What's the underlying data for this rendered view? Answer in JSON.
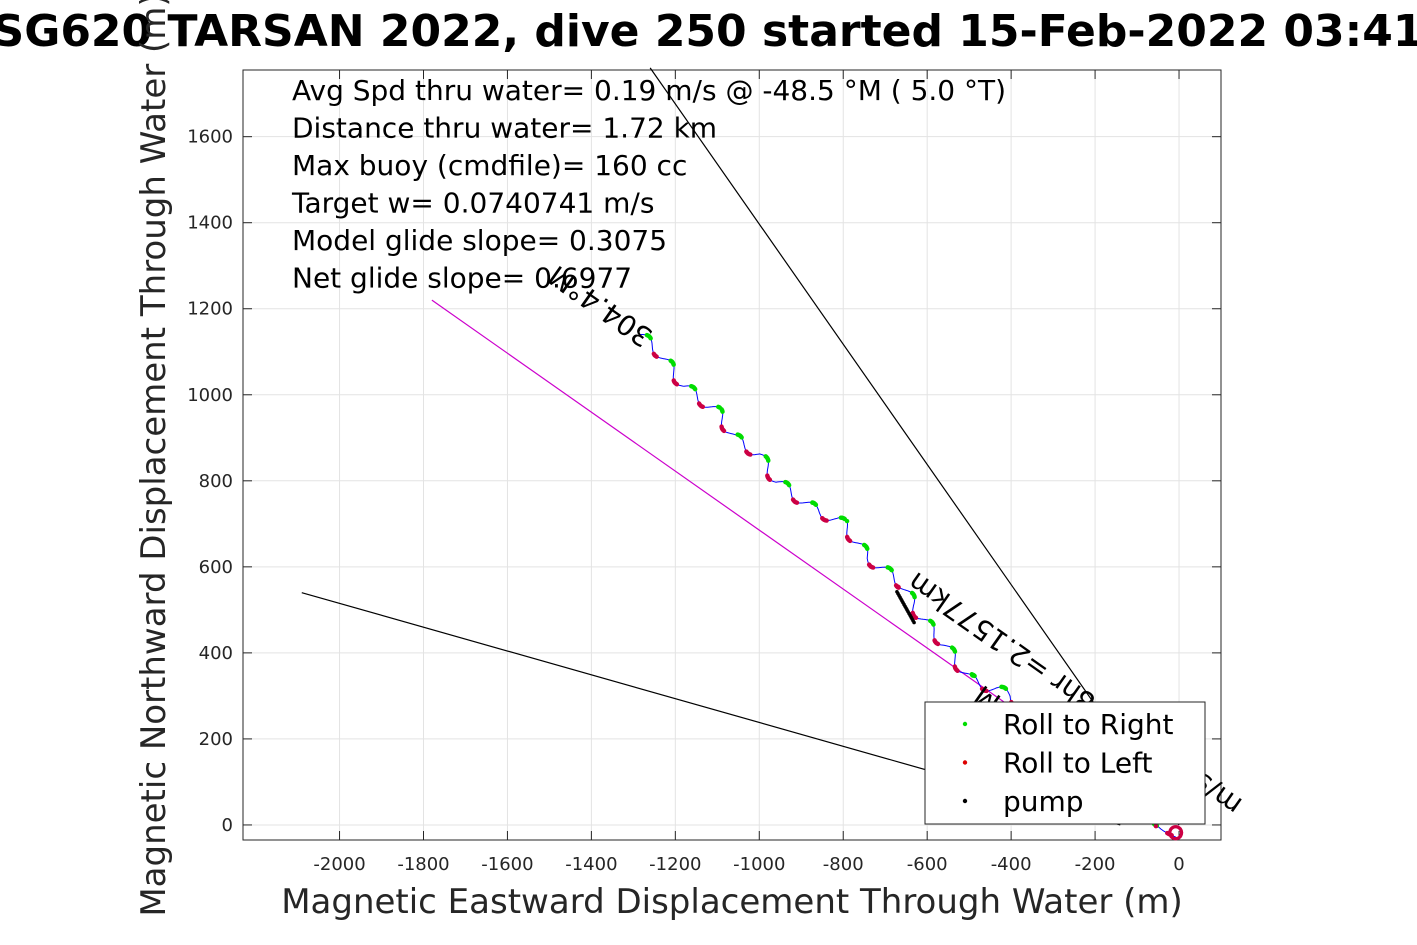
{
  "chart_data": {
    "type": "scatter",
    "title": "SG620 TARSAN 2022, dive 250 started 15-Feb-2022 03:41",
    "xlabel": "Magnetic Eastward Displacement Through Water (m)",
    "ylabel": "Magnetic Northward Displacement Through Water (m)",
    "xlim": [
      -2230,
      100
    ],
    "ylim": [
      -35,
      1755
    ],
    "xticks": [
      -2000,
      -1800,
      -1600,
      -1400,
      -1200,
      -1000,
      -800,
      -600,
      -400,
      -200,
      0
    ],
    "yticks": [
      0,
      200,
      400,
      600,
      800,
      1000,
      1200,
      1400,
      1600
    ],
    "grid": true,
    "annotations": [
      "Avg Spd thru water=  0.19 m/s @ -48.5 °M (  5.0 °T)",
      "Distance thru water=  1.72 km",
      "Max buoy (cmdfile)= 160 cc",
      "Target w= 0.0740741 m/s",
      "Model glide slope= 0.3075",
      "Net glide slope= 0.6977"
    ],
    "heading_label": "304.4°M",
    "speed_label": "m/s for2.4878hr =2.1577km",
    "heading_end_label": "M",
    "lines": [
      {
        "name": "track",
        "color": "#cc00cc",
        "x": [
          0,
          -1780
        ],
        "y": [
          0,
          1220
        ]
      },
      {
        "name": "upper bound",
        "color": "#000000",
        "x": [
          0,
          -1260
        ],
        "y": [
          0,
          1760
        ]
      },
      {
        "name": "lower bound",
        "color": "#000000",
        "x": [
          -140,
          -2090
        ],
        "y": [
          0,
          540
        ]
      }
    ],
    "path_control": [
      [
        -5,
        -30
      ],
      [
        -30,
        -15
      ],
      [
        -60,
        -5
      ],
      [
        -200,
        120
      ],
      [
        -400,
        300
      ],
      [
        -500,
        340
      ],
      [
        -560,
        420
      ],
      [
        -620,
        490
      ],
      [
        -660,
        560
      ],
      [
        -740,
        620
      ],
      [
        -800,
        700
      ],
      [
        -880,
        740
      ],
      [
        -960,
        800
      ],
      [
        -1000,
        860
      ],
      [
        -1060,
        900
      ],
      [
        -1100,
        960
      ],
      [
        -1180,
        1020
      ],
      [
        -1240,
        1100
      ],
      [
        -1285,
        1140
      ]
    ],
    "wiggle_amplitude": 12,
    "wiggle_cycles": 22,
    "legend": {
      "position": "bottom-right",
      "entries": [
        {
          "label": "Roll to Right",
          "color": "#00dd00"
        },
        {
          "label": "Roll to Left",
          "color": "#dd0000"
        },
        {
          "label": "pump",
          "color": "#000000"
        }
      ]
    },
    "series": [
      {
        "name": "Roll to Right",
        "color": "#00dd00"
      },
      {
        "name": "Roll to Left",
        "color": "#cc0044"
      },
      {
        "name": "pump",
        "color": "#000000"
      }
    ],
    "path_color": "#0000ff"
  }
}
